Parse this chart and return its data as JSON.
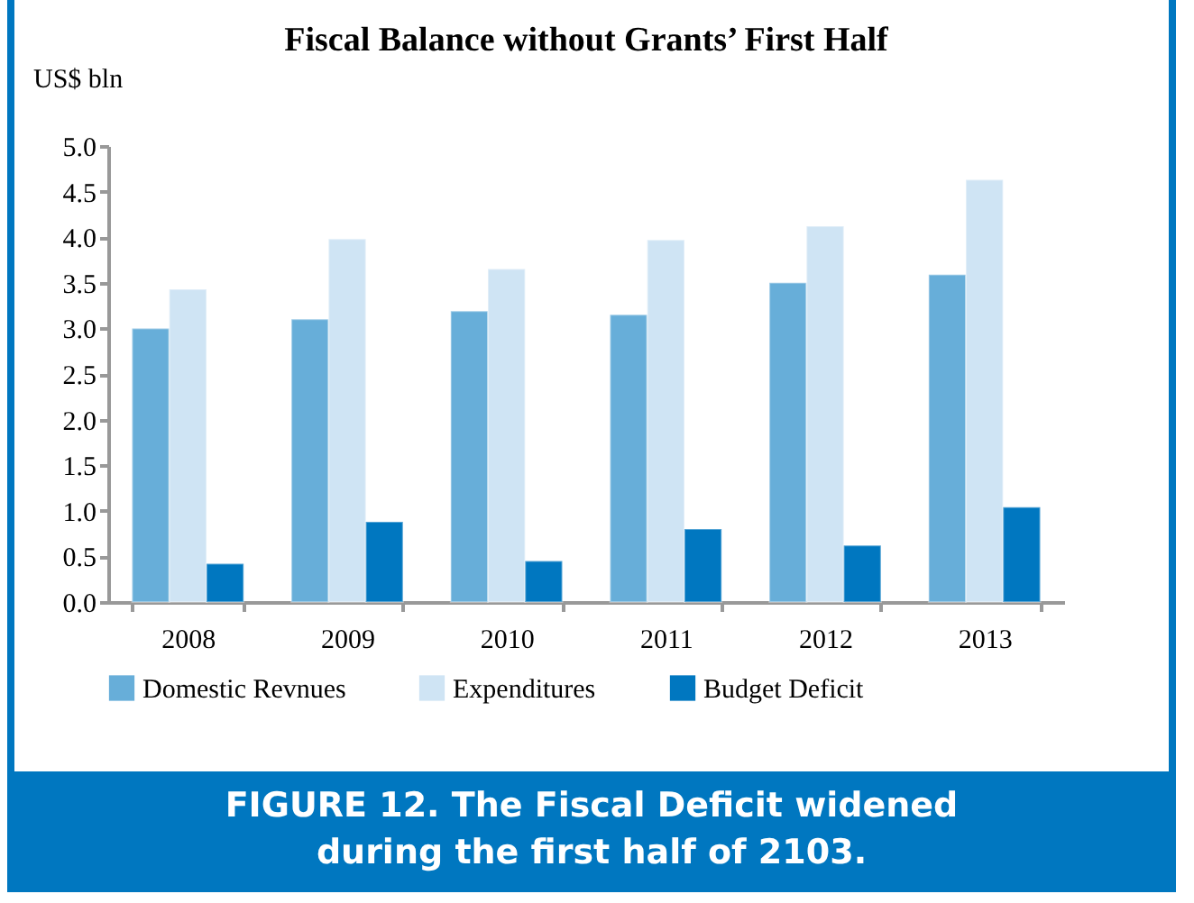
{
  "chart_data": {
    "type": "bar",
    "title": "Fiscal Balance without Grants’ First Half",
    "ylabel": "US$ bln",
    "categories": [
      "2008",
      "2009",
      "2010",
      "2011",
      "2012",
      "2013"
    ],
    "series": [
      {
        "name": "Domestic Revnues",
        "color": "#67aed9",
        "values": [
          3.0,
          3.1,
          3.19,
          3.15,
          3.5,
          3.59
        ]
      },
      {
        "name": "Expenditures",
        "color": "#cfe4f4",
        "values": [
          3.43,
          3.98,
          3.65,
          3.97,
          4.12,
          4.63
        ]
      },
      {
        "name": "Budget Deficit",
        "color": "#0077c0",
        "values": [
          0.42,
          0.88,
          0.45,
          0.8,
          0.62,
          1.04
        ]
      }
    ],
    "ylim": [
      0,
      5
    ],
    "yticks": [
      {
        "value": 0,
        "label": "0.0"
      },
      {
        "value": 0.5,
        "label": "0.5"
      },
      {
        "value": 1,
        "label": "1.0"
      },
      {
        "value": 1.5,
        "label": "1.5"
      },
      {
        "value": 2,
        "label": "2.0"
      },
      {
        "value": 2.5,
        "label": "2.5"
      },
      {
        "value": 3,
        "label": "3.0"
      },
      {
        "value": 3.5,
        "label": "3.5"
      },
      {
        "value": 4,
        "label": "4.0"
      },
      {
        "value": 4.5,
        "label": "4.5"
      },
      {
        "value": 5,
        "label": "5.0"
      }
    ],
    "grid": false,
    "legend": "bottom",
    "annotations": [
      "FIGURE 12.  The Fiscal Deficit widened during the first half of 2103."
    ]
  }
}
